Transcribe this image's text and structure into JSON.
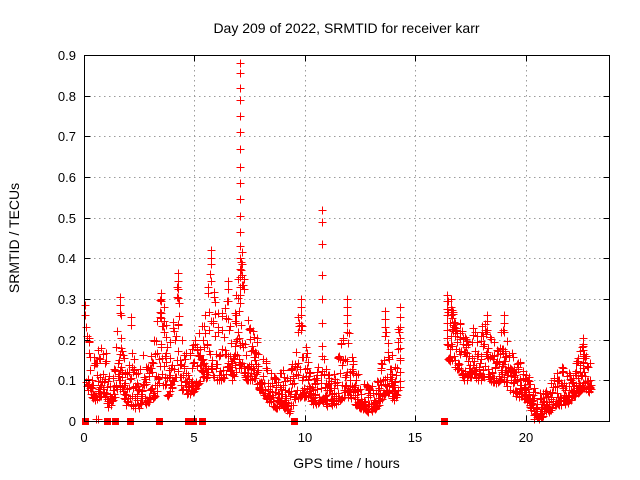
{
  "chart_data": {
    "type": "scatter",
    "title": "Day 209 of 2022, SRMTID for receiver karr",
    "xlabel": "GPS time / hours",
    "ylabel": "SRMTID / TECUs",
    "xlim": [
      0,
      23.76
    ],
    "ylim": [
      0,
      0.9
    ],
    "xticks": {
      "values": [
        0,
        5,
        10,
        15,
        20
      ],
      "labels": [
        "0",
        "5",
        "10",
        "15",
        "20"
      ]
    },
    "yticks": {
      "values": [
        0,
        0.1,
        0.2,
        0.3,
        0.4,
        0.5,
        0.6,
        0.7,
        0.8,
        0.9
      ],
      "labels": [
        "0",
        "0.1",
        "0.2",
        "0.3",
        "0.4",
        "0.5",
        "0.6",
        "0.7",
        "0.8",
        "0.9"
      ]
    },
    "grid": true,
    "legend": "none",
    "marker": "plus",
    "marker_half_px": 4,
    "zero_marker": "filled-square",
    "colors": {
      "series": "#ff0000",
      "grid": "#9b9b9b",
      "border": "#000000",
      "text": "#000000",
      "background": "#ffffff"
    },
    "series_name": "SRMTID",
    "envelope_nodes": [
      [
        0.1,
        0.08,
        0.24
      ],
      [
        0.3,
        0.06,
        0.18
      ],
      [
        0.5,
        0.05,
        0.15
      ],
      [
        0.7,
        0.06,
        0.22
      ],
      [
        0.9,
        0.06,
        0.2
      ],
      [
        1.1,
        0.03,
        0.12
      ],
      [
        1.3,
        0.05,
        0.16
      ],
      [
        1.5,
        0.07,
        0.24
      ],
      [
        1.65,
        0.08,
        0.3
      ],
      [
        1.8,
        0.05,
        0.18
      ],
      [
        2.0,
        0.03,
        0.14
      ],
      [
        2.15,
        0.04,
        0.24
      ],
      [
        2.3,
        0.03,
        0.12
      ],
      [
        2.5,
        0.03,
        0.12
      ],
      [
        2.65,
        0.06,
        0.19
      ],
      [
        2.8,
        0.04,
        0.13
      ],
      [
        3.0,
        0.05,
        0.15
      ],
      [
        3.2,
        0.06,
        0.21
      ],
      [
        3.45,
        0.08,
        0.31
      ],
      [
        3.6,
        0.08,
        0.28
      ],
      [
        3.8,
        0.06,
        0.18
      ],
      [
        4.0,
        0.08,
        0.22
      ],
      [
        4.2,
        0.1,
        0.36
      ],
      [
        4.35,
        0.08,
        0.24
      ],
      [
        4.55,
        0.07,
        0.18
      ],
      [
        4.75,
        0.06,
        0.16
      ],
      [
        4.95,
        0.07,
        0.19
      ],
      [
        5.15,
        0.09,
        0.22
      ],
      [
        5.35,
        0.1,
        0.24
      ],
      [
        5.55,
        0.1,
        0.27
      ],
      [
        5.72,
        0.12,
        0.4
      ],
      [
        5.9,
        0.1,
        0.31
      ],
      [
        6.1,
        0.1,
        0.26
      ],
      [
        6.3,
        0.1,
        0.27
      ],
      [
        6.5,
        0.12,
        0.33
      ],
      [
        6.7,
        0.1,
        0.27
      ],
      [
        6.9,
        0.12,
        0.31
      ],
      [
        7.05,
        0.13,
        0.4
      ],
      [
        7.18,
        0.13,
        0.38
      ],
      [
        7.32,
        0.1,
        0.27
      ],
      [
        7.5,
        0.1,
        0.23
      ],
      [
        7.7,
        0.1,
        0.22
      ],
      [
        7.9,
        0.08,
        0.19
      ],
      [
        8.1,
        0.07,
        0.17
      ],
      [
        8.3,
        0.05,
        0.14
      ],
      [
        8.5,
        0.04,
        0.12
      ],
      [
        8.7,
        0.03,
        0.1
      ],
      [
        8.9,
        0.04,
        0.12
      ],
      [
        9.1,
        0.03,
        0.13
      ],
      [
        9.3,
        0.02,
        0.1
      ],
      [
        9.55,
        0.05,
        0.18
      ],
      [
        9.75,
        0.06,
        0.28
      ],
      [
        9.95,
        0.06,
        0.24
      ],
      [
        10.15,
        0.05,
        0.15
      ],
      [
        10.35,
        0.04,
        0.12
      ],
      [
        10.55,
        0.04,
        0.12
      ],
      [
        10.75,
        0.05,
        0.2
      ],
      [
        10.95,
        0.04,
        0.13
      ],
      [
        11.15,
        0.03,
        0.11
      ],
      [
        11.35,
        0.04,
        0.13
      ],
      [
        11.55,
        0.05,
        0.17
      ],
      [
        11.75,
        0.06,
        0.22
      ],
      [
        11.92,
        0.06,
        0.28
      ],
      [
        12.1,
        0.05,
        0.16
      ],
      [
        12.3,
        0.04,
        0.13
      ],
      [
        12.5,
        0.03,
        0.11
      ],
      [
        12.7,
        0.03,
        0.1
      ],
      [
        12.9,
        0.02,
        0.08
      ],
      [
        13.1,
        0.03,
        0.09
      ],
      [
        13.3,
        0.03,
        0.11
      ],
      [
        13.5,
        0.05,
        0.15
      ],
      [
        13.65,
        0.07,
        0.24
      ],
      [
        13.8,
        0.07,
        0.18
      ],
      [
        14.0,
        0.05,
        0.15
      ],
      [
        14.15,
        0.06,
        0.2
      ],
      [
        14.32,
        0.08,
        0.26
      ],
      [
        16.45,
        0.15,
        0.3
      ],
      [
        16.62,
        0.14,
        0.28
      ],
      [
        16.8,
        0.12,
        0.24
      ],
      [
        17.0,
        0.13,
        0.24
      ],
      [
        17.2,
        0.1,
        0.21
      ],
      [
        17.4,
        0.1,
        0.19
      ],
      [
        17.6,
        0.11,
        0.23
      ],
      [
        17.8,
        0.1,
        0.21
      ],
      [
        17.95,
        0.1,
        0.23
      ],
      [
        18.2,
        0.11,
        0.24
      ],
      [
        18.4,
        0.1,
        0.21
      ],
      [
        18.6,
        0.09,
        0.19
      ],
      [
        18.8,
        0.1,
        0.23
      ],
      [
        19.0,
        0.1,
        0.25
      ],
      [
        19.2,
        0.08,
        0.19
      ],
      [
        19.4,
        0.07,
        0.16
      ],
      [
        19.6,
        0.06,
        0.14
      ],
      [
        19.8,
        0.06,
        0.15
      ],
      [
        20.0,
        0.05,
        0.12
      ],
      [
        20.2,
        0.03,
        0.1
      ],
      [
        20.4,
        0.02,
        0.08
      ],
      [
        20.6,
        0.005,
        0.07
      ],
      [
        20.8,
        0.015,
        0.07
      ],
      [
        21.0,
        0.02,
        0.08
      ],
      [
        21.2,
        0.03,
        0.1
      ],
      [
        21.4,
        0.04,
        0.12
      ],
      [
        21.6,
        0.04,
        0.14
      ],
      [
        21.8,
        0.04,
        0.11
      ],
      [
        22.0,
        0.05,
        0.12
      ],
      [
        22.2,
        0.06,
        0.13
      ],
      [
        22.4,
        0.07,
        0.16
      ],
      [
        22.55,
        0.08,
        0.19
      ],
      [
        22.7,
        0.08,
        0.17
      ],
      [
        22.85,
        0.07,
        0.15
      ],
      [
        22.97,
        0.08,
        0.14
      ]
    ],
    "spike_columns": [
      {
        "t": 0.06,
        "ys": [
          0.285,
          0.26
        ]
      },
      {
        "t": 0.1,
        "ys": [
          0.23
        ]
      },
      {
        "t": 0.56,
        "ys": [
          0.004
        ]
      },
      {
        "t": 0.63,
        "ys": [
          0.004
        ]
      },
      {
        "t": 1.62,
        "ys": [
          0.305,
          0.285,
          0.265
        ]
      },
      {
        "t": 2.12,
        "ys": [
          0.255,
          0.235
        ]
      },
      {
        "t": 3.5,
        "ys": [
          0.315,
          0.295
        ]
      },
      {
        "t": 4.25,
        "ys": [
          0.365,
          0.345,
          0.325
        ]
      },
      {
        "t": 5.74,
        "ys": [
          0.42,
          0.4,
          0.385
        ]
      },
      {
        "t": 6.52,
        "ys": [
          0.345,
          0.325
        ]
      },
      {
        "t": 7.08,
        "ys": [
          0.88,
          0.855,
          0.82,
          0.79,
          0.75,
          0.71,
          0.67,
          0.625,
          0.585,
          0.545,
          0.505,
          0.465,
          0.43
        ]
      },
      {
        "t": 7.05,
        "ys": [
          0.4,
          0.375,
          0.355,
          0.33,
          0.31,
          0.29
        ]
      },
      {
        "t": 7.15,
        "ys": [
          0.415,
          0.385,
          0.36,
          0.335
        ]
      },
      {
        "t": 9.82,
        "ys": [
          0.3,
          0.28,
          0.26,
          0.235
        ]
      },
      {
        "t": 10.78,
        "ys": [
          0.52,
          0.49,
          0.435,
          0.36,
          0.3,
          0.24
        ]
      },
      {
        "t": 11.92,
        "ys": [
          0.3,
          0.28,
          0.26,
          0.24,
          0.22
        ]
      },
      {
        "t": 13.62,
        "ys": [
          0.27,
          0.25,
          0.23,
          0.21
        ]
      },
      {
        "t": 14.28,
        "ys": [
          0.28,
          0.255,
          0.23,
          0.205,
          0.18,
          0.15,
          0.12
        ]
      },
      {
        "t": 16.45,
        "ys": [
          0.31,
          0.295,
          0.275,
          0.26,
          0.24,
          0.225,
          0.205,
          0.19
        ]
      },
      {
        "t": 16.62,
        "ys": [
          0.3,
          0.28,
          0.26
        ]
      },
      {
        "t": 18.25,
        "ys": [
          0.26,
          0.245
        ]
      },
      {
        "t": 19.02,
        "ys": [
          0.26,
          0.24,
          0.22
        ]
      },
      {
        "t": 20.35,
        "ys": [
          0.005,
          0.015
        ]
      },
      {
        "t": 20.5,
        "ys": [
          0.01
        ]
      },
      {
        "t": 22.58,
        "ys": [
          0.205,
          0.19,
          0.175,
          0.16,
          0.145,
          0.13
        ]
      }
    ],
    "zero_marker_hours": [
      0.05,
      1.05,
      1.4,
      2.1,
      3.4,
      4.7,
      4.92,
      5.35,
      9.5,
      16.3
    ],
    "generation": {
      "seed": 987654321,
      "points_per_hour": 58,
      "bias_power": 1.9,
      "stack_prob": 0.22,
      "gap_threshold": 1.0
    }
  }
}
